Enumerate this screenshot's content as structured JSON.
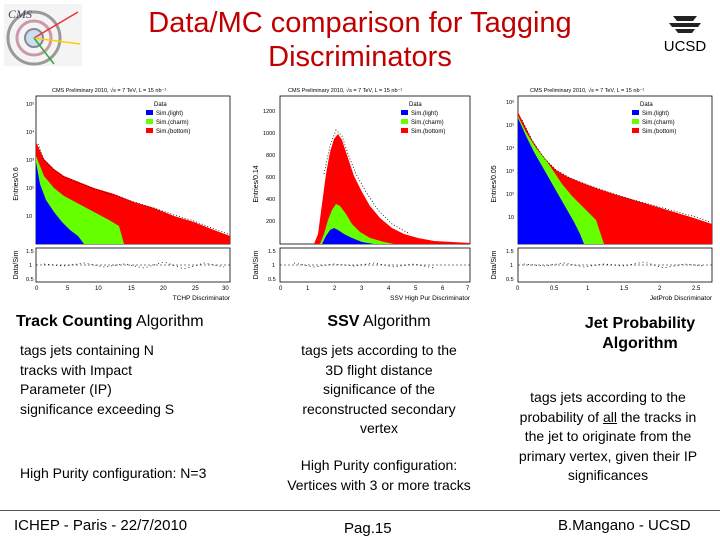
{
  "slide": {
    "title_line1": "Data/MC comparison for Tagging",
    "title_line2": "Discriminators",
    "title_color": "#c00000"
  },
  "logos": {
    "left": "cms-logo-icon",
    "right": "ucsd-logo-icon",
    "right_text": "UCSD"
  },
  "plots": [
    {
      "header": "CMS Preliminary 2010,  √s = 7 TeV,  L = 15 nb⁻¹",
      "ylabel": "Entries/0.6",
      "xlabel": "TCHP Discriminator",
      "ratio_label": "Data/Sim",
      "y_ticks": [
        "10⁵",
        "10⁴",
        "10³",
        "10²",
        "10"
      ],
      "x_ticks": [
        "0",
        "5",
        "10",
        "15",
        "20",
        "25",
        "30"
      ],
      "ratio_ticks": [
        "1.5",
        "1",
        "0.5"
      ],
      "legend": [
        "Data",
        "Sim.(light)",
        "Sim.(charm)",
        "Sim.(bottom)"
      ]
    },
    {
      "header": "CMS Preliminary 2010,  √s = 7 TeV,  L = 15 nb⁻¹",
      "ylabel": "Entries/0.14",
      "xlabel": "SSV High Pur Discriminator",
      "ratio_label": "Data/Sim",
      "y_ticks": [
        "1200",
        "1000",
        "800",
        "600",
        "400",
        "200"
      ],
      "x_ticks": [
        "0",
        "1",
        "2",
        "3",
        "4",
        "5",
        "6",
        "7"
      ],
      "ratio_ticks": [
        "1.5",
        "1",
        "0.5"
      ],
      "legend": [
        "Data",
        "Sim.(light)",
        "Sim.(charm)",
        "Sim.(bottom)"
      ]
    },
    {
      "header": "CMS Preliminary 2010,  √s = 7 TeV,  L = 15 nb⁻¹",
      "ylabel": "Entries/0.05",
      "xlabel": "JetProb Discriminator",
      "ratio_label": "Data/Sim",
      "y_ticks": [
        "10⁶",
        "10⁵",
        "10⁴",
        "10³",
        "10²",
        "10"
      ],
      "x_ticks": [
        "0",
        "0.5",
        "1",
        "1.5",
        "2",
        "2.5"
      ],
      "ratio_ticks": [
        "1.5",
        "1",
        "0.5"
      ],
      "legend": [
        "Data",
        "Sim.(light)",
        "Sim.(charm)",
        "Sim.(bottom)"
      ]
    }
  ],
  "colors": {
    "light": "#0000ff",
    "charm": "#66ff00",
    "bottom": "#ff0000",
    "data": "#000000"
  },
  "columns": [
    {
      "title_bold": "Track Counting",
      "title_rest": " Algorithm",
      "desc": [
        "tags jets containing N",
        "tracks with Impact",
        "Parameter (IP)",
        "significance exceeding S"
      ],
      "config": "High Purity configuration: N=3"
    },
    {
      "title_bold": "SSV",
      "title_rest": " Algorithm",
      "desc": [
        "tags jets according to the",
        "3D flight distance",
        "significance of the",
        "reconstructed secondary",
        "vertex"
      ],
      "config": [
        "High Purity configuration:",
        "Vertices with 3 or more tracks"
      ]
    },
    {
      "title_line1": "Jet Probability",
      "title_line2": "Algorithm",
      "desc_pre": "tags jets according to the",
      "desc_pre2": "probability of ",
      "desc_underlined": "all",
      "desc_post2": " the tracks in",
      "desc_rest": [
        "the jet to originate from the",
        "primary vertex, given their IP",
        "significances"
      ]
    }
  ],
  "footer": {
    "left": "ICHEP - Paris - 22/7/2010",
    "center": "Pag.15",
    "right": "B.Mangano - UCSD"
  }
}
